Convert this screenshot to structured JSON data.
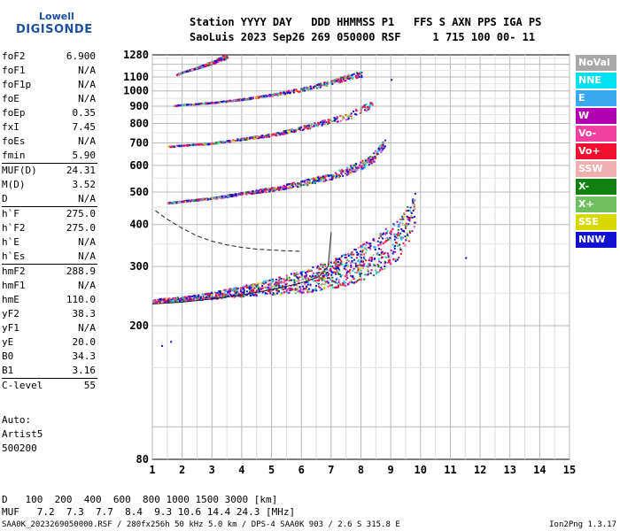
{
  "logo": {
    "line1": "Lowell",
    "line2": "DIGISONDE"
  },
  "header": {
    "line1": "Station YYYY DAY   DDD HHMMSS P1   FFS S AXN PPS IGA PS",
    "line2": "SaoLuis 2023 Sep26 269 050000 RSF     1 715 100 00- 11"
  },
  "parameters": [
    {
      "name": "foF2",
      "value": "6.900"
    },
    {
      "name": "foF1",
      "value": "N/A"
    },
    {
      "name": "foF1p",
      "value": "N/A"
    },
    {
      "name": "foE",
      "value": "N/A"
    },
    {
      "name": "foEp",
      "value": "0.35"
    },
    {
      "name": "fxI",
      "value": "7.45"
    },
    {
      "name": "foEs",
      "value": "N/A"
    },
    {
      "name": "fmin",
      "value": "5.90"
    },
    {
      "name": "MUF(D)",
      "value": "24.31"
    },
    {
      "name": "M(D)",
      "value": "3.52"
    },
    {
      "name": "D",
      "value": "N/A"
    },
    {
      "name": "h`F",
      "value": "275.0"
    },
    {
      "name": "h`F2",
      "value": "275.0"
    },
    {
      "name": "h`E",
      "value": "N/A"
    },
    {
      "name": "h`Es",
      "value": "N/A"
    },
    {
      "name": "hmF2",
      "value": "288.9"
    },
    {
      "name": "hmF1",
      "value": "N/A"
    },
    {
      "name": "hmE",
      "value": "110.0"
    },
    {
      "name": "yF2",
      "value": "38.3"
    },
    {
      "name": "yF1",
      "value": "N/A"
    },
    {
      "name": "yE",
      "value": "20.0"
    },
    {
      "name": "B0",
      "value": "34.3"
    },
    {
      "name": "B1",
      "value": "3.16"
    },
    {
      "name": "C-level",
      "value": "55"
    }
  ],
  "autoscale": {
    "line1": "Auto:",
    "line2": "Artist5",
    "line3": "500200"
  },
  "legend": [
    {
      "label": "NoVal",
      "color": "#a8a8a8"
    },
    {
      "label": "NNE",
      "color": "#00e0f0"
    },
    {
      "label": "E",
      "color": "#3aa8f0"
    },
    {
      "label": "W",
      "color": "#b000b0"
    },
    {
      "label": "Vo-",
      "color": "#f040a0"
    },
    {
      "label": "Vo+",
      "color": "#f01030"
    },
    {
      "label": "SSW",
      "color": "#f0b0b0"
    },
    {
      "label": "X-",
      "color": "#108010"
    },
    {
      "label": "X+",
      "color": "#70c060"
    },
    {
      "label": "SSE",
      "color": "#d8d800"
    },
    {
      "label": "NNW",
      "color": "#1010d0"
    }
  ],
  "muf_table": {
    "d_label": "D",
    "d_values": "100  200  400  600  800 1000 1500 3000 [km]",
    "muf_label": "MUF",
    "muf_values": "7.2  7.3  7.7  8.4  9.3 10.6 14.4 24.3 [MHz]"
  },
  "footer": {
    "left": "SAA0K_2023269050000.RSF / 280fx256h 50 kHz 5.0 km / DPS-4 SAA0K 903 / 2.6 S 315.8 E",
    "right": "Ion2Png 1.3.17"
  },
  "chart_data": {
    "type": "scatter",
    "xlim": [
      1,
      15
    ],
    "ylim": [
      80,
      1280
    ],
    "y_scale": "log",
    "x_ticks": [
      1,
      2,
      3,
      4,
      5,
      6,
      7,
      8,
      9,
      10,
      11,
      12,
      13,
      14,
      15
    ],
    "x_tick_labels": [
      "1",
      "2",
      "3",
      "4",
      "5",
      "6",
      "7",
      "8",
      "9",
      "10",
      "11",
      "12",
      "13",
      "14",
      "15"
    ],
    "y_ticks": [
      80,
      200,
      300,
      400,
      500,
      600,
      700,
      800,
      900,
      1000,
      1100,
      1280
    ],
    "y_tick_labels": [
      "80",
      "200",
      "300",
      "400",
      "500",
      "600",
      "700",
      "800",
      "900",
      "1000",
      "1100",
      "1280"
    ],
    "grid": true,
    "traces": [
      {
        "x": [
          1.0,
          2.0,
          3.0,
          4.0,
          5.0,
          6.0,
          7.0,
          7.6,
          8.0,
          8.4,
          8.8,
          9.2,
          9.5,
          9.8
        ],
        "y": [
          237,
          240,
          245,
          252,
          258,
          266,
          278,
          290,
          300,
          312,
          330,
          350,
          380,
          430
        ]
      },
      {
        "x": [
          1.5,
          2.0,
          3.0,
          4.0,
          5.0,
          6.0,
          7.0,
          7.6,
          8.0,
          8.4,
          8.8
        ],
        "y": [
          465,
          470,
          480,
          495,
          510,
          530,
          555,
          580,
          600,
          630,
          700
        ]
      },
      {
        "x": [
          1.5,
          2.0,
          3.0,
          4.0,
          5.0,
          6.0,
          7.0,
          7.6,
          8.0,
          8.4
        ],
        "y": [
          685,
          690,
          700,
          720,
          740,
          775,
          815,
          840,
          880,
          910
        ]
      },
      {
        "x": [
          1.7,
          2.0,
          3.0,
          4.0,
          5.0,
          6.0,
          7.0,
          7.6,
          8.0
        ],
        "y": [
          905,
          912,
          925,
          945,
          975,
          1010,
          1060,
          1100,
          1120
        ]
      },
      {
        "x": [
          1.8,
          2.0,
          2.5,
          3.0,
          3.5
        ],
        "y": [
          1120,
          1140,
          1175,
          1215,
          1270
        ]
      }
    ],
    "profile_curves": [
      {
        "style": "solid",
        "x": [
          1.0,
          2.0,
          3.0,
          4.0,
          5.0,
          6.0,
          6.6,
          6.9,
          7.0
        ],
        "y": [
          232,
          235,
          240,
          247,
          256,
          268,
          280,
          300,
          380
        ]
      },
      {
        "style": "dashed",
        "x": [
          1.1,
          1.5,
          2.0,
          2.5,
          3.0,
          3.5,
          4.0,
          4.5,
          5.0,
          5.5,
          6.0
        ],
        "y": [
          440,
          415,
          390,
          370,
          357,
          348,
          342,
          338,
          336,
          334,
          333
        ]
      }
    ],
    "isolated_points": [
      {
        "x": 1.3,
        "y": 175
      },
      {
        "x": 1.6,
        "y": 180
      },
      {
        "x": 9.0,
        "y": 1085
      },
      {
        "x": 11.5,
        "y": 320
      }
    ]
  }
}
